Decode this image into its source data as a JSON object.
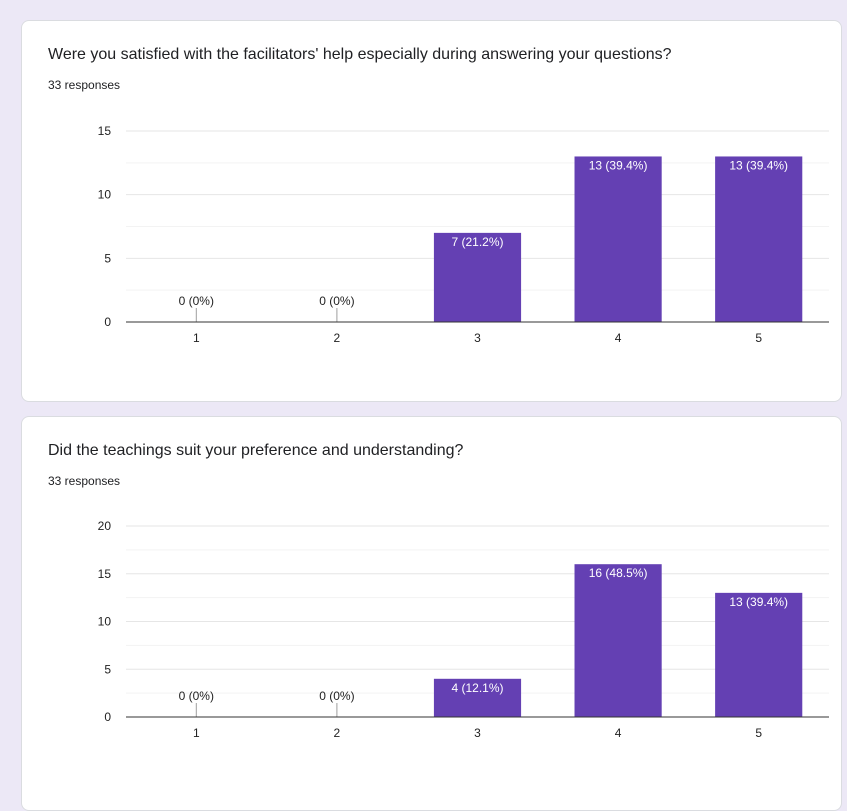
{
  "colors": {
    "bar": "#6440b3",
    "grid_major": "#e6e6e6",
    "grid_minor": "#f3f3f3",
    "axis": "#333333",
    "page_background": "#ece8f6",
    "card_background": "#ffffff"
  },
  "cards": [
    {
      "title": "Were you satisfied with the facilitators' help especially during answering your questions?",
      "responses": "33 responses"
    },
    {
      "title": "Did the teachings suit your preference and understanding?",
      "responses": "33 responses"
    }
  ],
  "chart_data": [
    {
      "type": "bar",
      "title": "",
      "xlabel": "",
      "ylabel": "",
      "categories": [
        "1",
        "2",
        "3",
        "4",
        "5"
      ],
      "values": [
        0,
        0,
        7,
        13,
        13
      ],
      "data_labels": [
        "0 (0%)",
        "0 (0%)",
        "7 (21.2%)",
        "13 (39.4%)",
        "13 (39.4%)"
      ],
      "ylim": [
        0,
        15
      ],
      "yticks": [
        "0",
        "5",
        "10",
        "15"
      ],
      "grid": true,
      "legend": "none"
    },
    {
      "type": "bar",
      "title": "",
      "xlabel": "",
      "ylabel": "",
      "categories": [
        "1",
        "2",
        "3",
        "4",
        "5"
      ],
      "values": [
        0,
        0,
        4,
        16,
        13
      ],
      "data_labels": [
        "0 (0%)",
        "0 (0%)",
        "4 (12.1%)",
        "16 (48.5%)",
        "13 (39.4%)"
      ],
      "ylim": [
        0,
        20
      ],
      "yticks": [
        "0",
        "5",
        "10",
        "15",
        "20"
      ],
      "grid": true,
      "legend": "none"
    }
  ]
}
